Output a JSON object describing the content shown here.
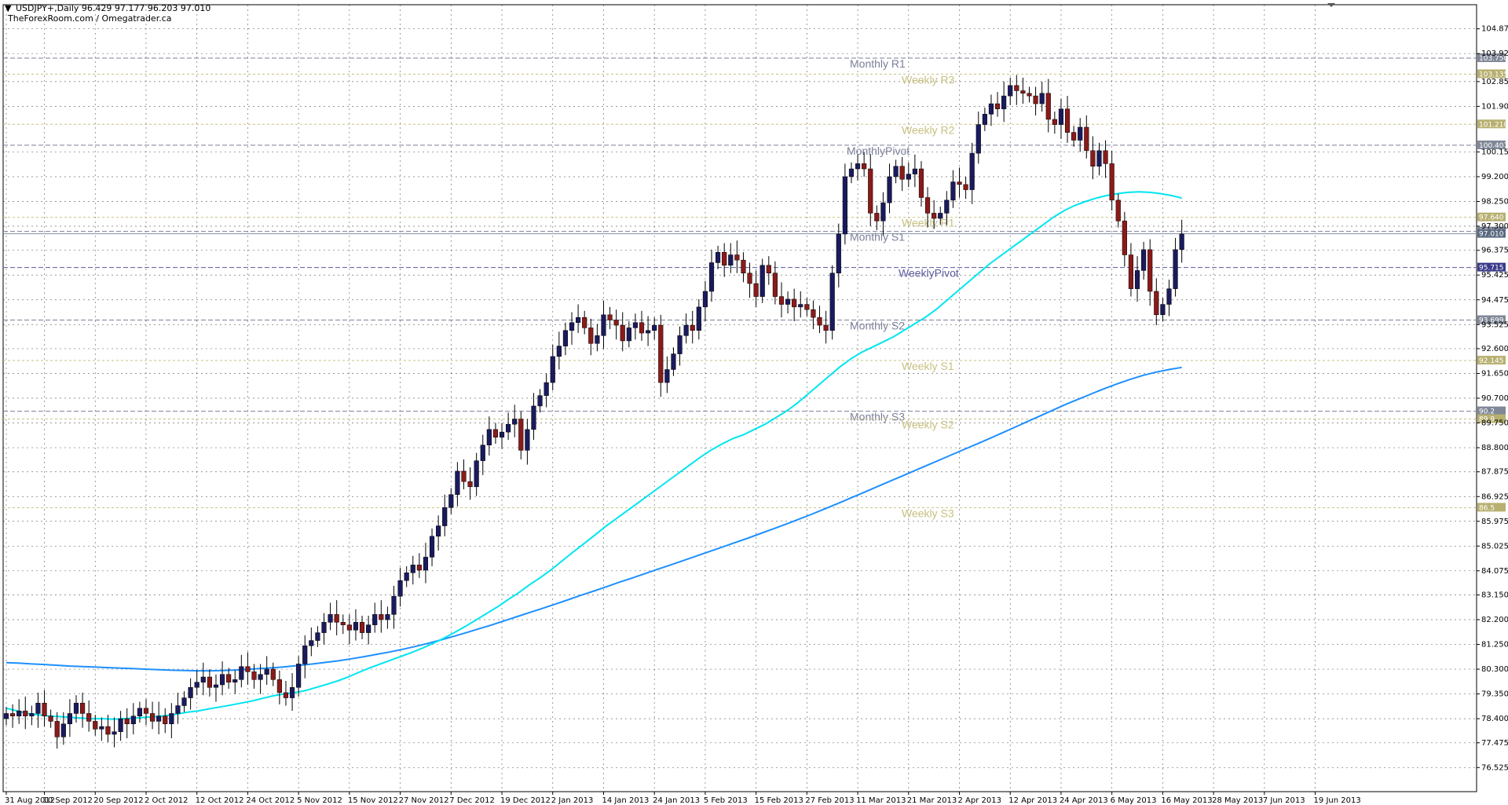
{
  "header": {
    "symbol_line": "USDJPY+,Daily  96.429 97.177 96.203 97.010",
    "source_line": "TheForexRoom.com / Omegatrader.ca",
    "arrow": "▼"
  },
  "colors": {
    "bull": "#1a1a5e",
    "bear": "#8b1a1a",
    "wick": "#000000",
    "ma_fast": "#00e5f0",
    "ma_slow": "#1e90ff",
    "monthly_level": "#7a7f99",
    "weekly_level": "#c8c080",
    "weekly_pivot": "#5a5aa0",
    "current_price": "#7f8fa6",
    "grid": "#000000"
  },
  "chart_data": {
    "type": "candlestick",
    "ylim": [
      75.6,
      105.8
    ],
    "yticks": [
      "104.875",
      "103.925",
      "102.850",
      "101.900",
      "100.150",
      "99.200",
      "98.250",
      "97.300",
      "96.375",
      "95.425",
      "94.475",
      "93.525",
      "92.600",
      "91.650",
      "90.700",
      "89.750",
      "88.800",
      "87.875",
      "86.925",
      "85.975",
      "85.025",
      "84.075",
      "83.150",
      "82.200",
      "81.250",
      "80.300",
      "79.350",
      "78.400",
      "77.475",
      "76.525"
    ],
    "ytick_values": [
      104.875,
      103.925,
      102.85,
      101.9,
      100.15,
      99.2,
      98.25,
      97.3,
      96.375,
      95.425,
      94.475,
      93.525,
      92.6,
      91.65,
      90.7,
      89.75,
      88.8,
      87.875,
      86.925,
      85.975,
      85.025,
      84.075,
      83.15,
      82.2,
      81.25,
      80.3,
      79.35,
      78.4,
      77.475,
      76.525
    ],
    "xticks": [
      {
        "label": "31 Aug 2012",
        "i": 0
      },
      {
        "label": "10 Sep 2012",
        "i": 6
      },
      {
        "label": "20 Sep 2012",
        "i": 14
      },
      {
        "label": "2 Oct 2012",
        "i": 22
      },
      {
        "label": "12 Oct 2012",
        "i": 30
      },
      {
        "label": "24 Oct 2012",
        "i": 38
      },
      {
        "label": "5 Nov 2012",
        "i": 46
      },
      {
        "label": "15 Nov 2012",
        "i": 54
      },
      {
        "label": "27 Nov 2012",
        "i": 62
      },
      {
        "label": "7 Dec 2012",
        "i": 70
      },
      {
        "label": "19 Dec 2012",
        "i": 78
      },
      {
        "label": "2 Jan 2013",
        "i": 86
      },
      {
        "label": "14 Jan 2013",
        "i": 94
      },
      {
        "label": "24 Jan 2013",
        "i": 102
      },
      {
        "label": "5 Feb 2013",
        "i": 110
      },
      {
        "label": "15 Feb 2013",
        "i": 118
      },
      {
        "label": "27 Feb 2013",
        "i": 126
      },
      {
        "label": "11 Mar 2013",
        "i": 134
      },
      {
        "label": "21 Mar 2013",
        "i": 142
      },
      {
        "label": "2 Apr 2013",
        "i": 150
      },
      {
        "label": "12 Apr 2013",
        "i": 158
      },
      {
        "label": "24 Apr 2013",
        "i": 166
      },
      {
        "label": "6 May 2013",
        "i": 174
      },
      {
        "label": "16 May 2013",
        "i": 182
      },
      {
        "label": "28 May 2013",
        "i": 190
      },
      {
        "label": "7 Jun 2013",
        "i": 198
      },
      {
        "label": "19 Jun 2013",
        "i": 206
      }
    ],
    "closes": [
      78.6,
      78.5,
      78.7,
      78.5,
      78.6,
      79.0,
      78.5,
      78.3,
      77.7,
      78.2,
      78.6,
      79.0,
      78.6,
      78.3,
      78.0,
      78.1,
      77.8,
      77.9,
      78.4,
      78.2,
      78.5,
      78.8,
      78.6,
      78.3,
      78.5,
      78.2,
      78.6,
      78.9,
      79.2,
      79.6,
      79.8,
      80.0,
      79.6,
      79.7,
      80.1,
      79.8,
      79.9,
      80.4,
      80.2,
      79.9,
      80.1,
      80.3,
      79.9,
      79.4,
      79.2,
      79.6,
      80.5,
      81.2,
      81.4,
      81.7,
      82.1,
      82.4,
      82.1,
      82.0,
      81.8,
      82.1,
      81.7,
      82.0,
      82.4,
      82.2,
      82.4,
      83.1,
      83.7,
      84.0,
      84.3,
      84.1,
      84.6,
      85.4,
      85.8,
      86.5,
      87.0,
      87.9,
      87.5,
      87.3,
      88.3,
      88.9,
      89.5,
      89.2,
      89.4,
      89.7,
      89.9,
      88.7,
      89.5,
      90.4,
      90.8,
      91.3,
      92.3,
      92.7,
      93.3,
      93.6,
      93.8,
      93.4,
      92.8,
      93.1,
      93.9,
      93.7,
      93.5,
      92.9,
      93.4,
      93.6,
      93.2,
      93.3,
      93.5,
      91.3,
      91.8,
      92.4,
      93.1,
      93.5,
      93.3,
      94.2,
      94.8,
      95.9,
      96.3,
      95.8,
      96.2,
      96.0,
      95.5,
      95.1,
      94.6,
      95.8,
      95.5,
      94.6,
      94.3,
      94.5,
      94.2,
      94.3,
      94.1,
      93.8,
      93.5,
      93.3,
      95.5,
      97.0,
      99.2,
      99.5,
      99.7,
      99.5,
      97.8,
      97.5,
      98.2,
      99.2,
      99.6,
      99.1,
      99.3,
      99.5,
      98.4,
      97.8,
      97.6,
      97.8,
      98.3,
      99.0,
      98.9,
      98.7,
      100.1,
      101.2,
      101.6,
      102.0,
      101.8,
      102.3,
      102.7,
      102.5,
      102.4,
      102.3,
      102.0,
      102.4,
      101.4,
      101.2,
      101.8,
      100.9,
      100.6,
      101.1,
      100.2,
      99.6,
      100.2,
      99.7,
      98.3,
      97.5,
      96.2,
      94.9,
      95.6,
      96.4,
      94.8,
      93.9,
      94.3,
      94.9,
      96.4,
      97.0
    ],
    "ma_fast": [
      78.8,
      78.7,
      78.6,
      78.55,
      78.5,
      78.48,
      78.45,
      78.42,
      78.4,
      78.4,
      78.38,
      78.4,
      78.42,
      78.45,
      78.48,
      78.52,
      78.58,
      78.65,
      78.7,
      78.78,
      78.85,
      78.92,
      79.0,
      79.08,
      79.18,
      79.28,
      79.35,
      79.4,
      79.48,
      79.6,
      79.72,
      79.85,
      80.0,
      80.18,
      80.35,
      80.5,
      80.65,
      80.8,
      80.95,
      81.12,
      81.3,
      81.5,
      81.72,
      81.95,
      82.2,
      82.45,
      82.7,
      82.98,
      83.25,
      83.55,
      83.82,
      84.12,
      84.45,
      84.78,
      85.1,
      85.42,
      85.75,
      86.05,
      86.35,
      86.65,
      86.95,
      87.25,
      87.55,
      87.85,
      88.15,
      88.45,
      88.72,
      88.95,
      89.15,
      89.3,
      89.5,
      89.7,
      89.95,
      90.2,
      90.5,
      90.85,
      91.2,
      91.55,
      91.9,
      92.2,
      92.45,
      92.65,
      92.85,
      93.05,
      93.3,
      93.55,
      93.8,
      94.1,
      94.45,
      94.8,
      95.15,
      95.5,
      95.85,
      96.15,
      96.45,
      96.75,
      97.05,
      97.35,
      97.65,
      97.9,
      98.1,
      98.25,
      98.38,
      98.48,
      98.55,
      98.6,
      98.62,
      98.6,
      98.55,
      98.48,
      98.38
    ],
    "ma_slow": [
      80.55,
      80.53,
      80.5,
      80.48,
      80.45,
      80.42,
      80.4,
      80.38,
      80.36,
      80.34,
      80.32,
      80.3,
      80.28,
      80.26,
      80.25,
      80.24,
      80.24,
      80.25,
      80.27,
      80.3,
      80.33,
      80.36,
      80.4,
      80.45,
      80.5,
      80.56,
      80.62,
      80.7,
      80.78,
      80.87,
      80.96,
      81.06,
      81.17,
      81.29,
      81.42,
      81.56,
      81.7,
      81.85,
      82.0,
      82.16,
      82.32,
      82.48,
      82.64,
      82.8,
      82.97,
      83.14,
      83.3,
      83.47,
      83.64,
      83.8,
      83.97,
      84.14,
      84.3,
      84.47,
      84.64,
      84.81,
      84.98,
      85.15,
      85.32,
      85.5,
      85.68,
      85.86,
      86.05,
      86.24,
      86.44,
      86.64,
      86.85,
      87.06,
      87.27,
      87.48,
      87.69,
      87.9,
      88.11,
      88.32,
      88.53,
      88.74,
      88.95,
      89.16,
      89.38,
      89.6,
      89.82,
      90.04,
      90.26,
      90.48,
      90.68,
      90.88,
      91.08,
      91.26,
      91.43,
      91.58,
      91.7,
      91.8,
      91.88
    ],
    "levels": [
      {
        "name": "Monthly R1",
        "value": 103.75,
        "label_x": 1082,
        "kind": "monthly",
        "badge": "103.750"
      },
      {
        "name": "Weekly R3",
        "value": 103.135,
        "label_x": 1148,
        "kind": "weekly",
        "badge": "103.135"
      },
      {
        "name": "Weekly R2",
        "value": 101.21,
        "label_x": 1148,
        "kind": "weekly",
        "badge": "101.210"
      },
      {
        "name": "MonthlyPivot",
        "value": 100.407,
        "label_x": 1078,
        "kind": "monthly",
        "badge": "100.407"
      },
      {
        "name": "Weekly R1",
        "value": 97.64,
        "label_x": 1148,
        "kind": "weekly",
        "badge": "97.640"
      },
      {
        "name": "Monthly S1",
        "value": 97.1,
        "label_x": 1082,
        "kind": "monthly",
        "badge": "97.100"
      },
      {
        "name": "WeeklyPivot",
        "value": 95.715,
        "label_x": 1144,
        "kind": "pivot",
        "badge": "95.715"
      },
      {
        "name": "Monthly S2",
        "value": 93.699,
        "label_x": 1082,
        "kind": "monthly",
        "badge": "93.699"
      },
      {
        "name": "Weekly S1",
        "value": 92.145,
        "label_x": 1148,
        "kind": "weekly",
        "badge": "92.145"
      },
      {
        "name": "Monthly S3",
        "value": 90.2,
        "label_x": 1082,
        "kind": "monthly",
        "badge": "90.2"
      },
      {
        "name": "Weekly S2",
        "value": 89.9,
        "label_x": 1148,
        "kind": "weekly",
        "badge": "89.9"
      },
      {
        "name": "Weekly S3",
        "value": 86.5,
        "label_x": 1148,
        "kind": "weekly",
        "badge": "86.5"
      }
    ],
    "current_price": {
      "value": 97.01,
      "badge": "97.010"
    },
    "grid": true
  }
}
